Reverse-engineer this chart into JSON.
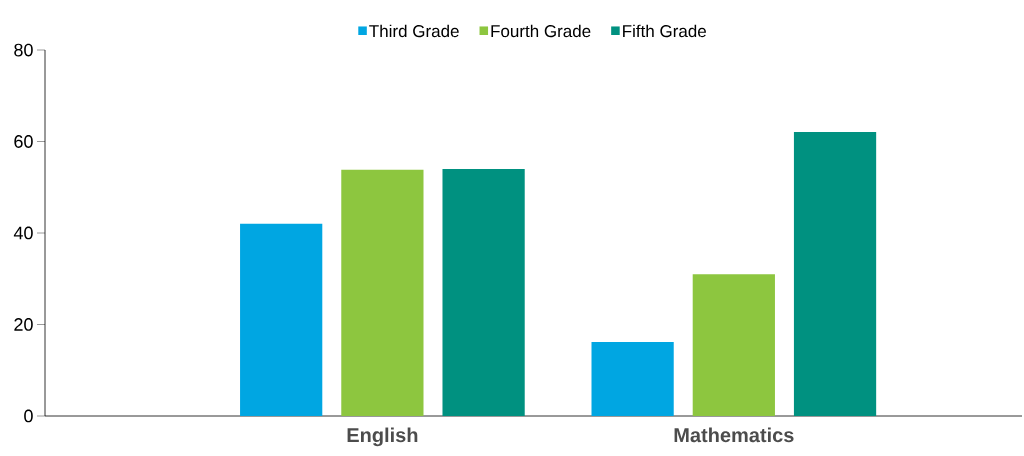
{
  "chart_data": {
    "type": "bar",
    "categories": [
      "**English**",
      "**Mathematics**"
    ],
    "series": [
      {
        "name": "Third Grade",
        "color": "#00a6e2",
        "values": [
          42,
          16.2
        ]
      },
      {
        "name": "Fourth Grade",
        "color": "#8dc63f",
        "values": [
          53.8,
          31
        ]
      },
      {
        "name": "Fifth Grade",
        "color": "#009180",
        "values": [
          54,
          62.1
        ]
      }
    ],
    "ylim": [
      0,
      80
    ],
    "yticks": [
      0,
      20,
      40,
      60,
      80
    ],
    "grid": false,
    "legend": "top"
  }
}
